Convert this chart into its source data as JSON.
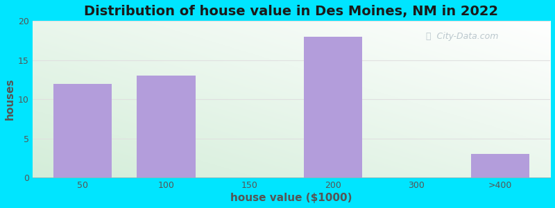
{
  "title": "Distribution of house value in Des Moines, NM in 2022",
  "xlabel": "house value ($1000)",
  "ylabel": "houses",
  "categories": [
    "50",
    "100",
    "150",
    "200",
    "300",
    ">400"
  ],
  "values": [
    12,
    13,
    0,
    18,
    0,
    3
  ],
  "bar_color": "#b39ddb",
  "bar_positions": [
    1,
    2,
    3,
    4,
    5,
    6
  ],
  "xtick_labels": [
    "50",
    "100",
    "150",
    "200",
    "300",
    ">400"
  ],
  "ylim": [
    0,
    20
  ],
  "yticks": [
    0,
    5,
    10,
    15,
    20
  ],
  "bg_outer": "#00e5ff",
  "grid_color": "#e0e0e0",
  "title_fontsize": 14,
  "axis_label_fontsize": 11,
  "watermark_text": "City-Data.com",
  "watermark_color": "#b0bec5",
  "tick_color": "#555555"
}
